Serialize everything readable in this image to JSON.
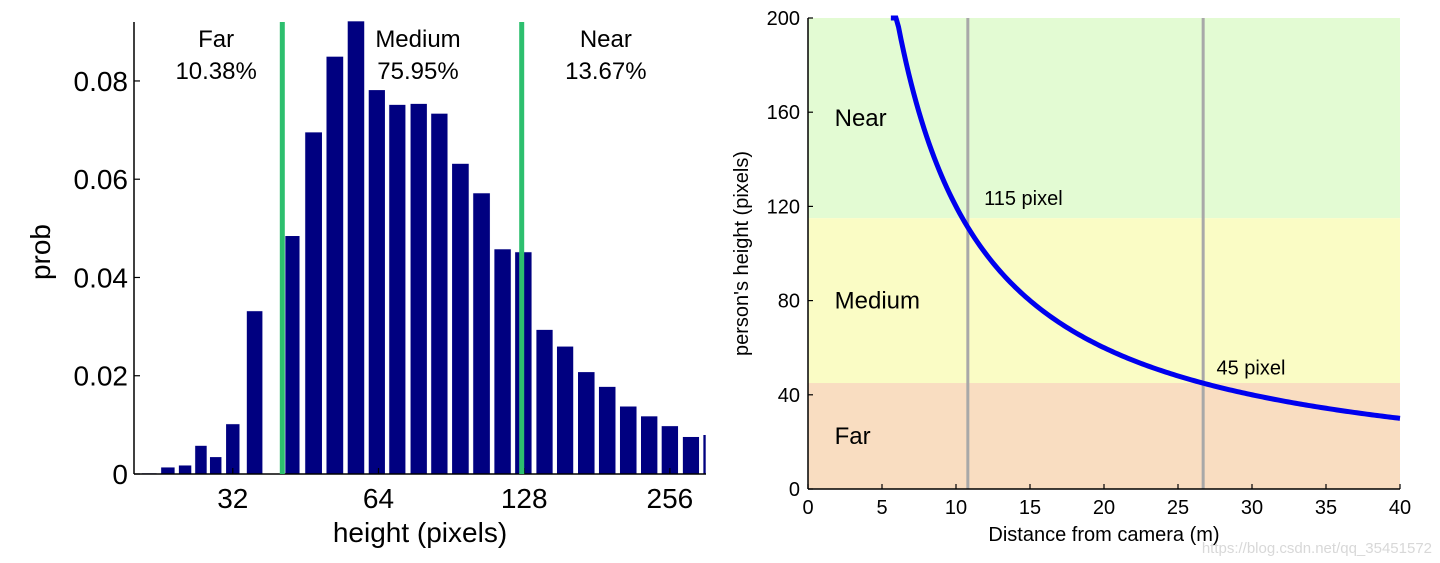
{
  "chart_data": [
    {
      "type": "bar",
      "xlabel": "height (pixels)",
      "ylabel": "prob",
      "x_scale": "log2",
      "xlim": [
        20,
        304
      ],
      "ylim": [
        0,
        0.092
      ],
      "yticks": [
        "0",
        "0.02",
        "0.04",
        "0.06",
        "0.08"
      ],
      "ytick_values": [
        0,
        0.02,
        0.04,
        0.06,
        0.08
      ],
      "xticks": [
        "32",
        "64",
        "128",
        "256"
      ],
      "xtick_values": [
        32,
        64,
        128,
        256
      ],
      "bar_color": "#000080",
      "divider_color": "#2dbf6e",
      "dividers": [
        40.5,
        126.5
      ],
      "bars": [
        {
          "x": 21.5,
          "value": 0.0002
        },
        {
          "x": 23.5,
          "value": 0.0014
        },
        {
          "x": 25.5,
          "value": 0.0018
        },
        {
          "x": 27.5,
          "value": 0.0058
        },
        {
          "x": 29.5,
          "value": 0.0035
        },
        {
          "x": 32.0,
          "value": 0.0102
        },
        {
          "x": 35.5,
          "value": 0.0332
        },
        {
          "x": 39.0,
          "value": 0.0
        },
        {
          "x": 42.5,
          "value": 0.0485
        },
        {
          "x": 47.0,
          "value": 0.0696
        },
        {
          "x": 52.0,
          "value": 0.085
        },
        {
          "x": 57.5,
          "value": 0.0922
        },
        {
          "x": 63.5,
          "value": 0.0782
        },
        {
          "x": 70.0,
          "value": 0.0752
        },
        {
          "x": 77.5,
          "value": 0.0754
        },
        {
          "x": 85.5,
          "value": 0.0734
        },
        {
          "x": 94.5,
          "value": 0.0632
        },
        {
          "x": 104.5,
          "value": 0.0572
        },
        {
          "x": 115.5,
          "value": 0.0458
        },
        {
          "x": 127.5,
          "value": 0.0452
        },
        {
          "x": 141.0,
          "value": 0.0294
        },
        {
          "x": 155.5,
          "value": 0.026
        },
        {
          "x": 172.0,
          "value": 0.0208
        },
        {
          "x": 190.0,
          "value": 0.0178
        },
        {
          "x": 210.0,
          "value": 0.0138
        },
        {
          "x": 232.0,
          "value": 0.0118
        },
        {
          "x": 256.0,
          "value": 0.0098
        },
        {
          "x": 283.0,
          "value": 0.0076
        },
        {
          "x": 312.0,
          "value": 0.008
        }
      ],
      "regions": [
        {
          "name": "Far",
          "pct": "10.38%"
        },
        {
          "name": "Medium",
          "pct": "75.95%"
        },
        {
          "name": "Near",
          "pct": "13.67%"
        }
      ]
    },
    {
      "type": "line",
      "xlabel": "Distance from camera (m)",
      "ylabel": "person's height (pixels)",
      "xlim": [
        0,
        40
      ],
      "ylim": [
        0,
        200
      ],
      "xticks": [
        "0",
        "5",
        "10",
        "15",
        "20",
        "25",
        "30",
        "35",
        "40"
      ],
      "xtick_values": [
        0,
        5,
        10,
        15,
        20,
        25,
        30,
        35,
        40
      ],
      "yticks": [
        "0",
        "40",
        "80",
        "120",
        "160",
        "200"
      ],
      "ytick_values": [
        0,
        40,
        80,
        120,
        160,
        200
      ],
      "curve_constant": 1200,
      "curve_x_range": [
        5.6,
        40
      ],
      "line_color": "#0000ee",
      "bands": [
        {
          "name": "Near",
          "from": 115,
          "to": 200,
          "color": "#e3fbd3"
        },
        {
          "name": "Medium",
          "from": 45,
          "to": 115,
          "color": "#fafcc5"
        },
        {
          "name": "Far",
          "from": 0,
          "to": 45,
          "color": "#f9ddc1"
        }
      ],
      "vlines": [
        10.8,
        26.7
      ],
      "vline_color": "#a8a8a8",
      "annotations": [
        {
          "text": "115 pixel",
          "x": 11.9,
          "y": 124
        },
        {
          "text": "45 pixel",
          "x": 27.6,
          "y": 52
        }
      ]
    }
  ],
  "watermark": "https://blog.csdn.net/qq_35451572"
}
